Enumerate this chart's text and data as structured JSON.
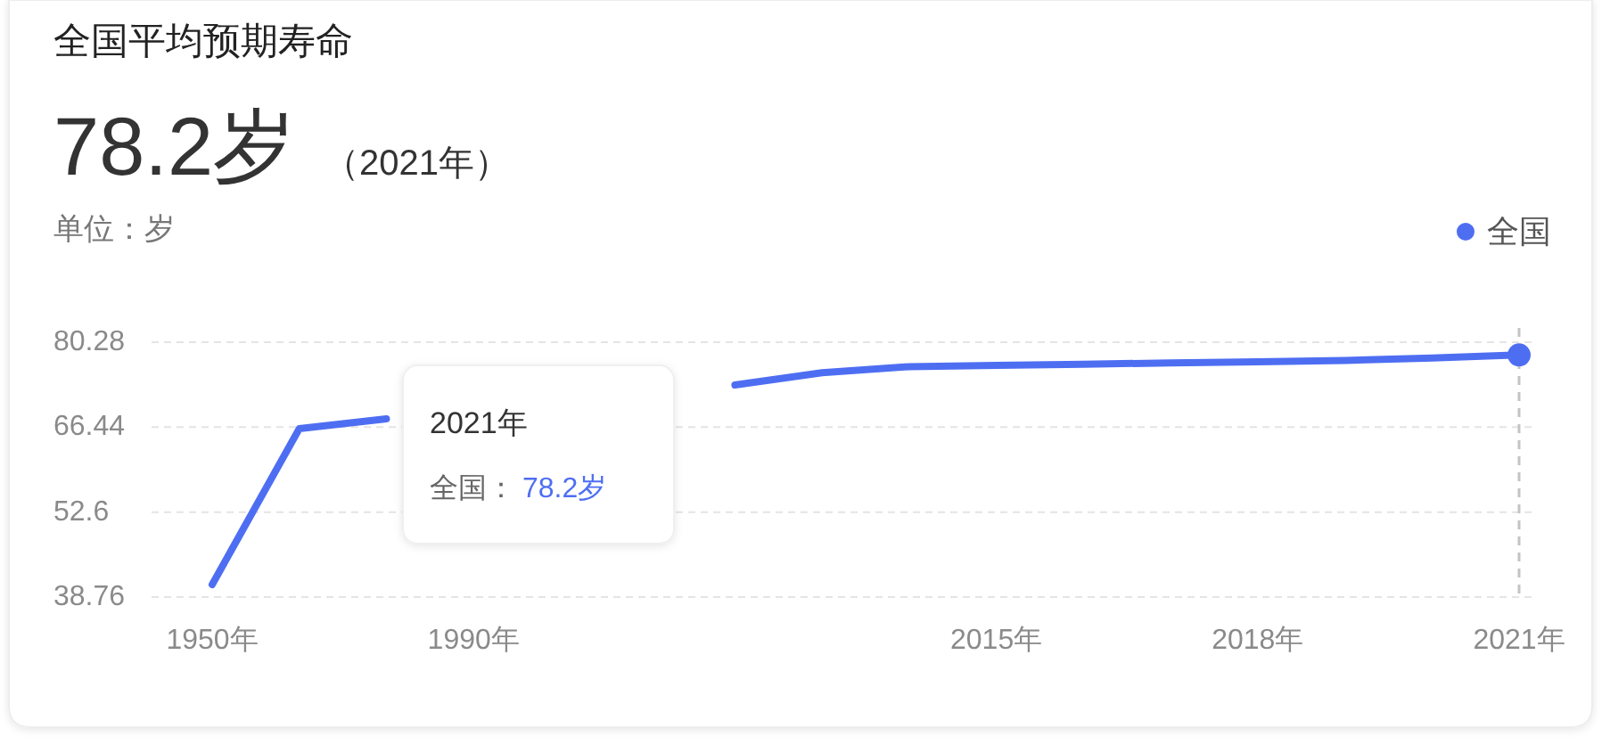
{
  "chart_data": {
    "type": "line",
    "title": "全国平均预期寿命",
    "subtitle": "78.2岁",
    "ylabel": "单位：岁",
    "annotations": [
      "（2021年）",
      "2021年",
      "全国：",
      "78.2岁"
    ],
    "categories": [
      "1950年",
      null,
      null,
      "1990年",
      null,
      null,
      null,
      null,
      null,
      "2015年",
      null,
      null,
      "2018年",
      null,
      null,
      "2021年"
    ],
    "series": [
      {
        "name": "全国",
        "color": "#4e6ef2",
        "values": [
          40.8,
          66.2,
          67.8,
          null,
          null,
          null,
          73.3,
          75.3,
          76.3,
          76.5,
          76.7,
          76.9,
          77.1,
          77.3,
          77.7,
          78.2
        ]
      }
    ],
    "ylim": [
      38.76,
      80.28
    ],
    "yticks": [
      38.76,
      52.6,
      66.44,
      80.28
    ],
    "grid": "y",
    "legend": "top right",
    "ref_lines": [
      {
        "axis": "x",
        "value": "2021年",
        "color": "#c4c4c4",
        "line_style": "dashed"
      }
    ]
  }
}
